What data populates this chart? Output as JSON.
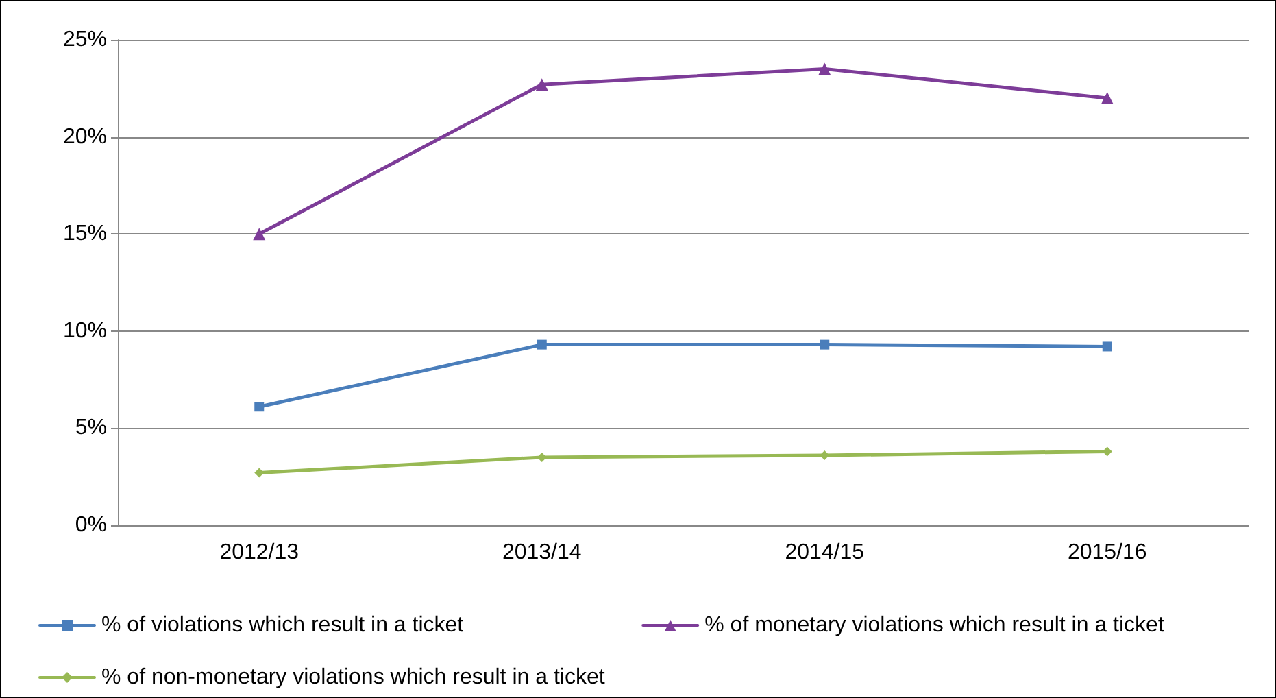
{
  "chart_data": {
    "type": "line",
    "categories": [
      "2012/13",
      "2013/14",
      "2014/15",
      "2015/16"
    ],
    "series": [
      {
        "name": "% of violations which result in a ticket",
        "color": "#4a7ebb",
        "marker": "square",
        "values": [
          6.1,
          9.3,
          9.3,
          9.2
        ]
      },
      {
        "name": "% of monetary violations which result in a ticket",
        "color": "#7d3c98",
        "marker": "triangle",
        "values": [
          15.0,
          22.7,
          23.5,
          22.0
        ]
      },
      {
        "name": "% of non-monetary violations which result in a ticket",
        "color": "#98b954",
        "marker": "diamond",
        "values": [
          2.7,
          3.5,
          3.6,
          3.8
        ]
      }
    ],
    "ylim": [
      0,
      25
    ],
    "yticks": [
      {
        "value": 0,
        "label": "0%"
      },
      {
        "value": 5,
        "label": "5%"
      },
      {
        "value": 10,
        "label": "10%"
      },
      {
        "value": 15,
        "label": "15%"
      },
      {
        "value": 20,
        "label": "20%"
      },
      {
        "value": 25,
        "label": "25%"
      }
    ],
    "grid": "y",
    "legend": "bottom",
    "line_style": "solid"
  }
}
